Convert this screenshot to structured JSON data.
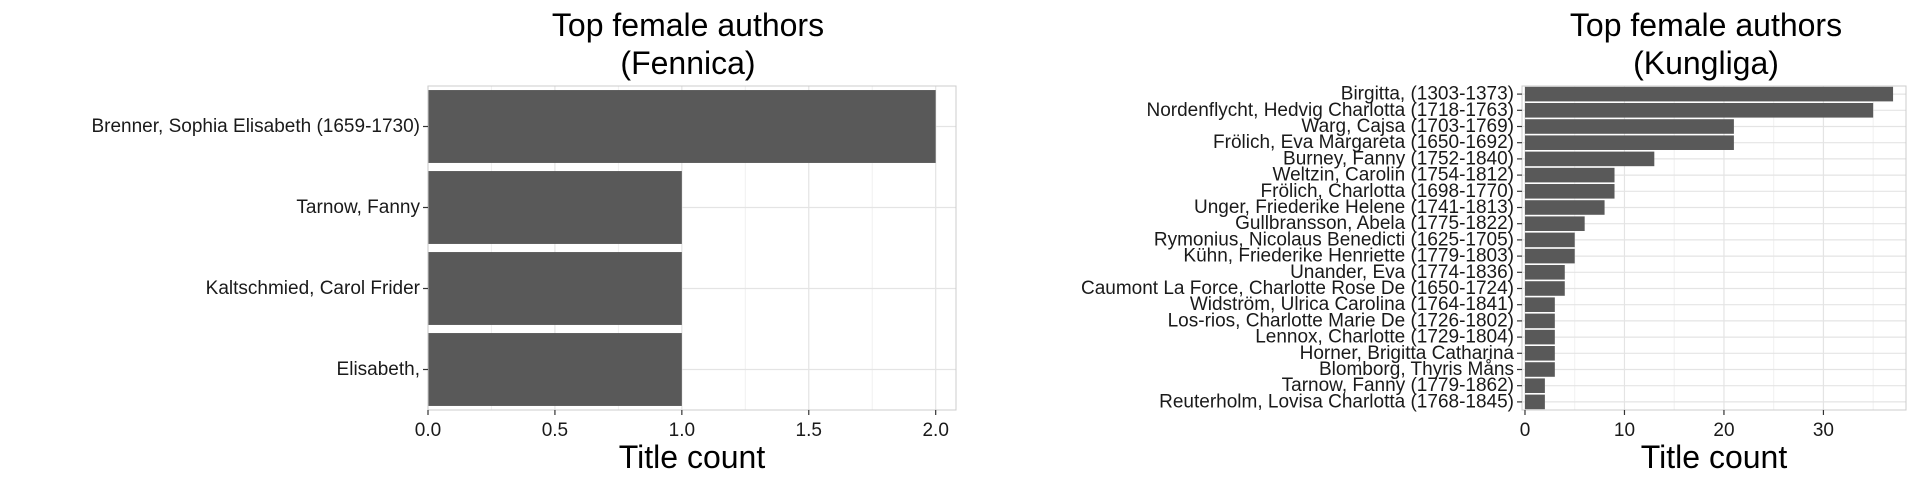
{
  "chart_data": [
    {
      "type": "bar",
      "orientation": "horizontal",
      "title": "Top female authors\n(Fennica)",
      "xlabel": "Title count",
      "ylabel": "",
      "categories": [
        "Brenner, Sophia Elisabeth (1659-1730)",
        "Tarnow, Fanny",
        "Kaltschmied, Carol Frider",
        "Elisabeth, "
      ],
      "values": [
        2,
        1,
        1,
        1
      ],
      "xlim": [
        0,
        2.08
      ],
      "xticks": [
        0,
        0.5,
        1,
        1.5,
        2
      ],
      "xtick_labels": [
        "0.0",
        "0.5",
        "1.0",
        "1.5",
        "2.0"
      ],
      "grid": true,
      "bar_color": "#595959"
    },
    {
      "type": "bar",
      "orientation": "horizontal",
      "title": "Top female authors\n(Kungliga)",
      "xlabel": "Title count",
      "ylabel": "",
      "categories": [
        "Birgitta,  (1303-1373)",
        "Nordenflycht, Hedvig Charlotta (1718-1763)",
        "Warg, Cajsa (1703-1769)",
        "Frölich, Eva Margareta (1650-1692)",
        "Burney, Fanny (1752-1840)",
        "Weltzin, Carolin (1754-1812)",
        "Frölich, Charlotta (1698-1770)",
        "Unger, Friederike Helene (1741-1813)",
        "Gullbransson, Abela (1775-1822)",
        "Rymonius, Nicolaus Benedicti (1625-1705)",
        "Kühn, Friederike Henriette (1779-1803)",
        "Unander, Eva (1774-1836)",
        "Caumont La Force, Charlotte Rose De (1650-1724)",
        "Widström, Ulrica Carolina (1764-1841)",
        "Los-rios, Charlotte Marie De (1726-1802)",
        "Lennox, Charlotte (1729-1804)",
        "Horner, Brigitta Catharina",
        "Blomborg, Thyris Måns",
        "Tarnow, Fanny (1779-1862)",
        "Reuterholm, Lovisa Charlotta (1768-1845)"
      ],
      "values": [
        37,
        35,
        21,
        21,
        13,
        9,
        9,
        8,
        6,
        5,
        5,
        4,
        4,
        3,
        3,
        3,
        3,
        3,
        2,
        2
      ],
      "xlim": [
        -0.3,
        38.3
      ],
      "xticks": [
        0,
        10,
        20,
        30
      ],
      "xtick_labels": [
        "0",
        "10",
        "20",
        "30"
      ],
      "grid": true,
      "bar_color": "#595959"
    }
  ]
}
